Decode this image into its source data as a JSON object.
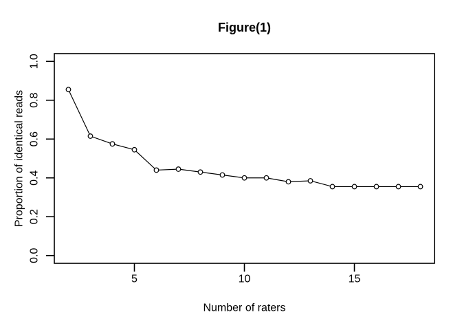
{
  "page": {
    "background": "#ffffff",
    "text_color": "#000000"
  },
  "chart_data": {
    "type": "line",
    "title": "Figure(1)",
    "xlabel": "Number of raters",
    "ylabel": "Proportion of identical reads",
    "x": [
      2,
      3,
      4,
      5,
      6,
      7,
      8,
      9,
      10,
      11,
      12,
      13,
      14,
      15,
      16,
      17,
      18
    ],
    "y": [
      0.855,
      0.615,
      0.575,
      0.545,
      0.44,
      0.445,
      0.43,
      0.415,
      0.4,
      0.4,
      0.38,
      0.385,
      0.355,
      0.355,
      0.355,
      0.355,
      0.355
    ],
    "xlim": [
      1.36,
      18.64
    ],
    "ylim": [
      -0.04,
      1.04
    ],
    "xtick_values": [
      5,
      10,
      15
    ],
    "xtick_labels": [
      "5",
      "10",
      "15"
    ],
    "ytick_values": [
      0.0,
      0.2,
      0.4,
      0.6,
      0.8,
      1.0
    ],
    "ytick_labels": [
      "0.0",
      "0.2",
      "0.4",
      "0.6",
      "0.8",
      "1.0"
    ],
    "grid": false,
    "legend": "none",
    "marker": "open-circle",
    "line_color": "#000000",
    "marker_stroke_color": "#000000",
    "marker_fill_color": "#ffffff",
    "axis_color": "#000000"
  }
}
